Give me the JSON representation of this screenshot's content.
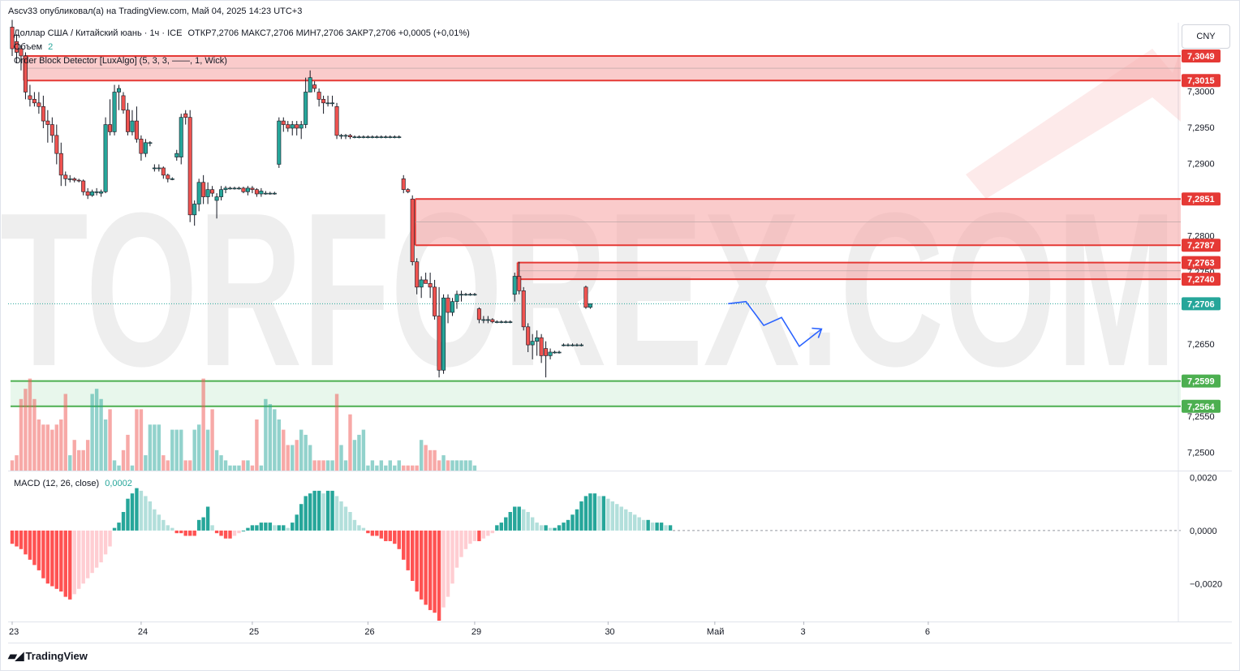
{
  "header": {
    "published": "Ascv33 опубликовал(а) на TradingView.com, Май 04, 2025 14:23 UTC+3"
  },
  "legend": {
    "symbol": "Доллар США / Китайский юань · 1ч · ICE",
    "ohlc": "ОТКР7,2706  МАКС7,2706  МИН7,2706  ЗАКР7,2706  +0,0005 (+0,01%)",
    "volume_label": "Объем",
    "volume_value": "2",
    "indicator": "Order Block Detector [LuxAlgo] (5, 3, 3, ——, 1, Wick)",
    "macd_label": "MACD (12, 26, close)",
    "macd_value": "0,0002"
  },
  "currency_button": "CNY",
  "watermark": "TORFOREX.COM",
  "footer": {
    "logo_text": "TradingView"
  },
  "colors": {
    "up": "#26a69a",
    "down": "#ef5350",
    "bearish_zone": "#f7a9a8",
    "bullish_zone": "#d5f0dc",
    "projection": "#2962ff"
  },
  "chart_data": {
    "type": "candlestick",
    "title": "Доллар США / Китайский юань · 1ч · ICE",
    "x_ticks": [
      "23",
      "24",
      "25",
      "26",
      "29",
      "30",
      "Май",
      "3",
      "6"
    ],
    "price_axis_ticks": [
      "7,3000",
      "7,2950",
      "7,2900",
      "7,2800",
      "7,2750",
      "7,2650",
      "7,2550",
      "7,2500"
    ],
    "price_range": [
      7.2475,
      7.3095
    ],
    "price_labels": [
      {
        "label": "7,3049",
        "value": 7.3049,
        "kind": "red"
      },
      {
        "label": "7,3015",
        "value": 7.3015,
        "kind": "red"
      },
      {
        "label": "7,2851",
        "value": 7.2851,
        "kind": "red"
      },
      {
        "label": "7,2787",
        "value": 7.2787,
        "kind": "red"
      },
      {
        "label": "7,2763",
        "value": 7.2763,
        "kind": "red"
      },
      {
        "label": "7,2740",
        "value": 7.274,
        "kind": "red"
      },
      {
        "label": "7,2706",
        "value": 7.2706,
        "kind": "last"
      },
      {
        "label": "7,2599",
        "value": 7.2599,
        "kind": "green"
      },
      {
        "label": "7,2564",
        "value": 7.2564,
        "kind": "green"
      }
    ],
    "order_blocks": [
      {
        "type": "bearish",
        "top": 7.3049,
        "bottom": 7.3015,
        "from_bar": 3
      },
      {
        "type": "bearish",
        "top": 7.2851,
        "bottom": 7.2787,
        "from_bar": 91
      },
      {
        "type": "bearish",
        "top": 7.2763,
        "bottom": 7.274,
        "from_bar": 114
      },
      {
        "type": "bullish",
        "top": 7.2599,
        "bottom": 7.2564,
        "from_bar": 0
      }
    ],
    "candles": [
      [
        7.3089,
        7.3099,
        7.3049,
        7.3059
      ],
      [
        7.3069,
        7.3079,
        7.3039,
        7.3054
      ],
      [
        7.3059,
        7.3064,
        7.3029,
        7.3049
      ],
      [
        7.3049,
        7.3054,
        7.2989,
        7.2999
      ],
      [
        7.2994,
        7.3009,
        7.2979,
        7.2989
      ],
      [
        7.2989,
        7.2999,
        7.2979,
        7.2984
      ],
      [
        7.2984,
        7.2999,
        7.2969,
        7.2979
      ],
      [
        7.2979,
        7.2994,
        7.2949,
        7.2959
      ],
      [
        7.2959,
        7.2974,
        7.2929,
        7.2954
      ],
      [
        7.2954,
        7.2964,
        7.2929,
        7.2939
      ],
      [
        7.2939,
        7.2954,
        7.2899,
        7.2914
      ],
      [
        7.2914,
        7.2929,
        7.2869,
        7.2884
      ],
      [
        7.2884,
        7.2889,
        7.2869,
        7.2879
      ],
      [
        7.2879,
        7.2884,
        7.2874,
        7.2879
      ],
      [
        7.2879,
        7.2881,
        7.2874,
        7.2877
      ],
      [
        7.2877,
        7.2879,
        7.2874,
        7.2876
      ],
      [
        7.2876,
        7.2878,
        7.2856,
        7.2861
      ],
      [
        7.2861,
        7.2866,
        7.2851,
        7.2856
      ],
      [
        7.2856,
        7.2864,
        7.2854,
        7.2861
      ],
      [
        7.2861,
        7.2866,
        7.2856,
        7.2861
      ],
      [
        7.2859,
        7.2864,
        7.2854,
        7.2861
      ],
      [
        7.2861,
        7.2964,
        7.2859,
        7.2954
      ],
      [
        7.2954,
        7.2989,
        7.2939,
        7.2944
      ],
      [
        7.2944,
        7.3009,
        7.2939,
        7.2999
      ],
      [
        7.2999,
        7.3009,
        7.2974,
        7.3004
      ],
      [
        7.2994,
        7.2999,
        7.2969,
        7.2974
      ],
      [
        7.2974,
        7.2984,
        7.2939,
        7.2944
      ],
      [
        7.2944,
        7.2974,
        7.2939,
        7.2959
      ],
      [
        7.2959,
        7.2979,
        7.2929,
        7.2934
      ],
      [
        7.2934,
        7.2939,
        7.2904,
        7.2914
      ],
      [
        7.2914,
        7.2934,
        7.2909,
        7.2929
      ],
      [
        7.2929,
        7.2931,
        7.2924,
        7.2929
      ],
      [
        7.2894,
        7.2899,
        7.2889,
        7.2894
      ],
      [
        7.2894,
        7.2899,
        7.2889,
        7.2894
      ],
      [
        7.2894,
        7.2896,
        7.2879,
        7.2884
      ],
      [
        7.2884,
        7.2886,
        7.2874,
        7.2879
      ],
      [
        7.2879,
        7.2881,
        7.2877,
        7.2879
      ],
      [
        7.2909,
        7.2919,
        7.2904,
        7.2914
      ],
      [
        7.2909,
        7.2969,
        7.2899,
        7.2964
      ],
      [
        7.2969,
        7.2974,
        7.2954,
        7.2964
      ],
      [
        7.2964,
        7.2974,
        7.2819,
        7.2829
      ],
      [
        7.2829,
        7.2849,
        7.2814,
        7.2844
      ],
      [
        7.2844,
        7.2879,
        7.2834,
        7.2874
      ],
      [
        7.2874,
        7.2884,
        7.2844,
        7.2854
      ],
      [
        7.2854,
        7.2874,
        7.2844,
        7.2864
      ],
      [
        7.2864,
        7.2869,
        7.2854,
        7.2859
      ],
      [
        7.2849,
        7.2859,
        7.2824,
        7.2854
      ],
      [
        7.2854,
        7.2869,
        7.2849,
        7.2864
      ],
      [
        7.2864,
        7.2869,
        7.2859,
        7.2866
      ],
      [
        7.2866,
        7.2868,
        7.2864,
        7.2866
      ],
      [
        7.2866,
        7.2868,
        7.2864,
        7.2866
      ],
      [
        7.2866,
        7.2868,
        7.2864,
        7.2866
      ],
      [
        7.2866,
        7.2868,
        7.2859,
        7.2861
      ],
      [
        7.2861,
        7.2869,
        7.2856,
        7.2866
      ],
      [
        7.2866,
        7.2869,
        7.2859,
        7.2864
      ],
      [
        7.2864,
        7.2866,
        7.2854,
        7.2858
      ],
      [
        7.2858,
        7.2866,
        7.2854,
        7.2862
      ],
      [
        7.2859,
        7.2862,
        7.2857,
        7.2859
      ],
      [
        7.2859,
        7.2861,
        7.2857,
        7.2859
      ],
      [
        7.2859,
        7.2861,
        7.2857,
        7.2859
      ],
      [
        7.2899,
        7.2964,
        7.2894,
        7.2959
      ],
      [
        7.2959,
        7.2964,
        7.2944,
        7.2954
      ],
      [
        7.2954,
        7.2959,
        7.2944,
        7.2949
      ],
      [
        7.2949,
        7.2959,
        7.2939,
        7.2954
      ],
      [
        7.2954,
        7.2959,
        7.2939,
        7.2949
      ],
      [
        7.2949,
        7.2959,
        7.2934,
        7.2954
      ],
      [
        7.2954,
        7.3019,
        7.2949,
        7.2999
      ],
      [
        7.2999,
        7.3029,
        7.2999,
        7.3019
      ],
      [
        7.3009,
        7.3014,
        7.2999,
        7.3004
      ],
      [
        7.2999,
        7.3004,
        7.2979,
        7.2989
      ],
      [
        7.2989,
        7.2994,
        7.2969,
        7.2984
      ],
      [
        7.2984,
        7.2994,
        7.2979,
        7.2984
      ],
      [
        7.2984,
        7.2994,
        7.2979,
        7.2984
      ],
      [
        7.2979,
        7.2984,
        7.2934,
        7.2939
      ],
      [
        7.2939,
        7.2941,
        7.2934,
        7.2939
      ],
      [
        7.2939,
        7.2941,
        7.2934,
        7.2939
      ],
      [
        7.2939,
        7.2941,
        7.2934,
        7.2937
      ],
      [
        7.2937,
        7.2939,
        7.2935,
        7.2937
      ],
      [
        7.2937,
        7.2939,
        7.2935,
        7.2937
      ],
      [
        7.2937,
        7.2939,
        7.2935,
        7.2937
      ],
      [
        7.2937,
        7.2939,
        7.2935,
        7.2937
      ],
      [
        7.2937,
        7.2939,
        7.2935,
        7.2937
      ],
      [
        7.2937,
        7.2939,
        7.2935,
        7.2937
      ],
      [
        7.2937,
        7.2939,
        7.2935,
        7.2937
      ],
      [
        7.2937,
        7.2939,
        7.2935,
        7.2937
      ],
      [
        7.2937,
        7.2939,
        7.2935,
        7.2937
      ],
      [
        7.2937,
        7.2939,
        7.2935,
        7.2937
      ],
      [
        7.2937,
        7.2939,
        7.2935,
        7.2937
      ],
      [
        7.2879,
        7.2884,
        7.2859,
        7.2864
      ],
      [
        7.2864,
        7.2866,
        7.2859,
        7.2861
      ],
      [
        7.2851,
        7.2856,
        7.2759,
        7.2764
      ],
      [
        7.2764,
        7.2769,
        7.2719,
        7.2729
      ],
      [
        7.2729,
        7.2744,
        7.2714,
        7.2739
      ],
      [
        7.2739,
        7.2749,
        7.2734,
        7.2734
      ],
      [
        7.2734,
        7.2749,
        7.2714,
        7.2729
      ],
      [
        7.2729,
        7.2739,
        7.2684,
        7.2689
      ],
      [
        7.2689,
        7.2729,
        7.2604,
        7.2614
      ],
      [
        7.2614,
        7.2719,
        7.2609,
        7.2714
      ],
      [
        7.2714,
        7.2719,
        7.2679,
        7.2694
      ],
      [
        7.2694,
        7.2714,
        7.2689,
        7.2709
      ],
      [
        7.2709,
        7.2724,
        7.2699,
        7.2719
      ],
      [
        7.2719,
        7.2724,
        7.2709,
        7.2719
      ],
      [
        7.2719,
        7.2721,
        7.2717,
        7.2719
      ],
      [
        7.2719,
        7.2721,
        7.2717,
        7.2719
      ],
      [
        7.2719,
        7.2721,
        7.2717,
        7.2719
      ],
      [
        7.2699,
        7.2701,
        7.2679,
        7.2684
      ],
      [
        7.2684,
        7.2689,
        7.2679,
        7.2684
      ],
      [
        7.2684,
        7.2689,
        7.2679,
        7.2684
      ],
      [
        7.2684,
        7.2686,
        7.2679,
        7.2681
      ],
      [
        7.2681,
        7.2683,
        7.2679,
        7.2681
      ],
      [
        7.2681,
        7.2683,
        7.2679,
        7.2681
      ],
      [
        7.2681,
        7.2683,
        7.2679,
        7.2681
      ],
      [
        7.2681,
        7.2683,
        7.2679,
        7.2681
      ],
      [
        7.2719,
        7.2749,
        7.2709,
        7.2744
      ],
      [
        7.2744,
        7.2764,
        7.2719,
        7.2724
      ],
      [
        7.2724,
        7.2729,
        7.2669,
        7.2674
      ],
      [
        7.2674,
        7.2679,
        7.2639,
        7.2649
      ],
      [
        7.2649,
        7.2664,
        7.2629,
        7.2654
      ],
      [
        7.2654,
        7.2669,
        7.2634,
        7.2659
      ],
      [
        7.2659,
        7.2664,
        7.2624,
        7.2634
      ],
      [
        7.2644,
        7.2654,
        7.2604,
        7.2634
      ],
      [
        7.2634,
        7.2644,
        7.2629,
        7.2639
      ],
      [
        7.2639,
        7.2641,
        7.2637,
        7.2639
      ],
      [
        7.2639,
        7.2641,
        7.2637,
        7.2639
      ],
      [
        7.2649,
        7.2651,
        7.2647,
        7.2649
      ],
      [
        7.2649,
        7.2651,
        7.2647,
        7.2649
      ],
      [
        7.2649,
        7.2651,
        7.2647,
        7.2649
      ],
      [
        7.2649,
        7.2651,
        7.2647,
        7.2649
      ],
      [
        7.2649,
        7.2651,
        7.2647,
        7.2649
      ],
      [
        7.2729,
        7.2731,
        7.2699,
        7.2701
      ],
      [
        7.2701,
        7.2706,
        7.2699,
        7.2706
      ]
    ],
    "projection_path": [
      {
        "bar": 161,
        "price": 7.2706
      },
      {
        "bar": 165,
        "price": 7.2709
      },
      {
        "bar": 169,
        "price": 7.2676
      },
      {
        "bar": 173,
        "price": 7.2687
      },
      {
        "bar": 177,
        "price": 7.2647
      },
      {
        "bar": 182,
        "price": 7.2671
      }
    ],
    "volume": {
      "label": "Объем",
      "up": [
        3,
        2,
        14,
        12,
        10,
        9,
        6,
        5,
        5,
        4,
        4,
        3,
        3,
        3,
        1,
        6,
        4,
        8,
        15,
        16,
        14,
        10,
        3,
        2,
        1,
        1,
        1,
        1,
        2,
        2,
        3,
        9,
        9,
        9,
        8,
        8,
        8,
        8,
        8,
        7,
        8,
        8,
        9,
        10,
        8,
        7,
        4,
        3,
        2,
        1,
        1,
        1,
        2,
        2,
        3,
        2,
        1,
        14,
        13,
        12,
        10,
        11,
        7,
        5,
        8,
        8,
        7,
        5,
        2,
        6,
        1,
        2,
        2,
        3,
        5,
        2,
        6,
        6,
        7,
        8,
        1,
        2,
        1,
        2,
        1,
        2,
        1,
        2,
        1,
        1,
        2,
        6,
        6,
        5,
        4,
        4,
        2,
        3,
        2,
        2,
        2,
        2,
        2,
        2,
        1
      ],
      "down": [
        2,
        3,
        14,
        16,
        18,
        14,
        10,
        9,
        9,
        8,
        9,
        10,
        15,
        9,
        6,
        4,
        4,
        6,
        4,
        7,
        3,
        12,
        12,
        10,
        14,
        4,
        7,
        11,
        12,
        12,
        8,
        7,
        2,
        3,
        3,
        2,
        2,
        2,
        2,
        2,
        2,
        3,
        16,
        18,
        15,
        12,
        8,
        6,
        5,
        4,
        3,
        3,
        2,
        2,
        1,
        10,
        14,
        13,
        12,
        15,
        13,
        8,
        5,
        5,
        6,
        5,
        4,
        3,
        2,
        2,
        2,
        2,
        16,
        15,
        16,
        12,
        11,
        8,
        7,
        4,
        2,
        1,
        1,
        1,
        1,
        1,
        1,
        1,
        1,
        1,
        1,
        1
      ]
    },
    "macd": {
      "label": "MACD (12, 26, close)",
      "value": "0,0002",
      "ticks": [
        "0,0020",
        "0,0000",
        "−0,0020"
      ],
      "range": [
        -0.0034,
        0.0022
      ],
      "histogram": [
        -0.0005,
        -0.0006,
        -0.0007,
        -0.0009,
        -0.0011,
        -0.0013,
        -0.0015,
        -0.0018,
        -0.002,
        -0.0021,
        -0.0022,
        -0.0023,
        -0.0025,
        -0.0026,
        -0.0024,
        -0.0022,
        -0.002,
        -0.0018,
        -0.0016,
        -0.0014,
        -0.0012,
        -0.0009,
        -0.0006,
        0.0001,
        0.0003,
        0.0007,
        0.0012,
        0.0014,
        0.0016,
        0.0015,
        0.0013,
        0.0011,
        0.0008,
        0.0006,
        0.0004,
        0.0002,
        0.0001,
        -0.0001,
        -0.0001,
        -0.0002,
        -0.0002,
        -0.0002,
        0.0004,
        0.0005,
        0.0009,
        0.0002,
        -0.0001,
        -0.0002,
        -0.0003,
        -0.0003,
        -0.0002,
        -0.0001,
        0.0,
        0.0001,
        0.0002,
        0.0002,
        0.0003,
        0.0003,
        0.0003,
        0.0002,
        0.0002,
        0.0002,
        0.0001,
        0.0003,
        0.0006,
        0.001,
        0.0013,
        0.0014,
        0.0015,
        0.0015,
        0.0014,
        0.0015,
        0.0015,
        0.0013,
        0.0011,
        0.0009,
        0.0007,
        0.0004,
        0.0002,
        0.0001,
        -0.0001,
        -0.0002,
        -0.0002,
        -0.0003,
        -0.0004,
        -0.0004,
        -0.0005,
        -0.0007,
        -0.0011,
        -0.0015,
        -0.0019,
        -0.0023,
        -0.0026,
        -0.0028,
        -0.003,
        -0.0031,
        -0.0034,
        -0.0029,
        -0.0025,
        -0.002,
        -0.0014,
        -0.001,
        -0.0007,
        -0.0005,
        -0.0004,
        -0.0004,
        -0.0003,
        -0.0002,
        -0.0001,
        0.0002,
        0.0003,
        0.0005,
        0.0007,
        0.0009,
        0.0009,
        0.0008,
        0.0007,
        0.0005,
        0.0003,
        0.0002,
        0.0002,
        0.0001,
        0.0001,
        0.0002,
        0.0003,
        0.0004,
        0.0006,
        0.0008,
        0.0011,
        0.0013,
        0.0014,
        0.0014,
        0.0013,
        0.0013,
        0.0012,
        0.0011,
        0.001,
        0.0009,
        0.0008,
        0.0007,
        0.0006,
        0.0005,
        0.0004,
        0.0004,
        0.0003,
        0.0003,
        0.0003,
        0.0002,
        0.0002
      ]
    }
  }
}
